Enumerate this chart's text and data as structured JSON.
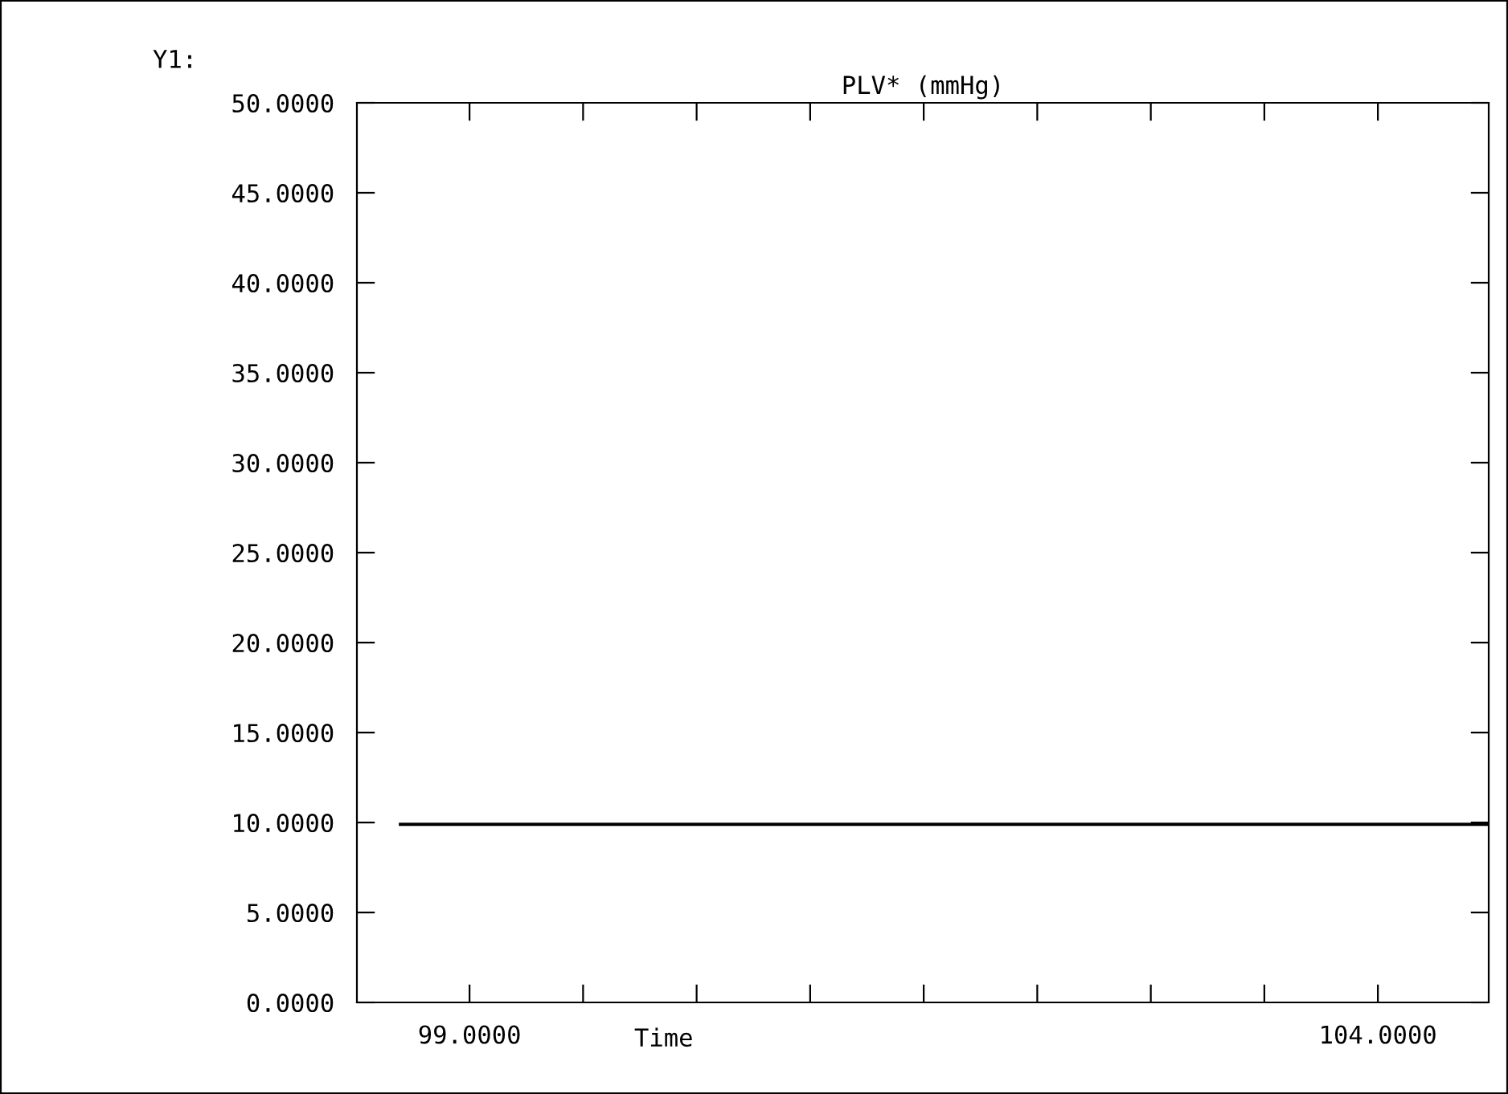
{
  "chart_data": {
    "type": "line",
    "title": "PLV* (mmHg)",
    "xlabel": "Time",
    "ylabel": "Y1:",
    "x": [
      98.62,
      104.61
    ],
    "series": [
      {
        "color": "#000000",
        "values": [
          9.9,
          9.9
        ]
      }
    ],
    "xlim": [
      98.38,
      104.61
    ],
    "xticks": [
      {
        "value": 99,
        "label": "99.0000"
      },
      {
        "value": 99.625,
        "label": null
      },
      {
        "value": 100.25,
        "label": null
      },
      {
        "value": 100.875,
        "label": null
      },
      {
        "value": 101.5,
        "label": null
      },
      {
        "value": 102.125,
        "label": null
      },
      {
        "value": 102.75,
        "label": null
      },
      {
        "value": 103.375,
        "label": null
      },
      {
        "value": 104,
        "label": "104.0000"
      }
    ],
    "ylim": [
      0,
      50
    ],
    "yticks": [
      {
        "value": 0,
        "label": "0.0000"
      },
      {
        "value": 5,
        "label": "5.0000"
      },
      {
        "value": 10,
        "label": "10.0000"
      },
      {
        "value": 15,
        "label": "15.0000"
      },
      {
        "value": 20,
        "label": "20.0000"
      },
      {
        "value": 25,
        "label": "25.0000"
      },
      {
        "value": 30,
        "label": "30.0000"
      },
      {
        "value": 35,
        "label": "35.0000"
      },
      {
        "value": 40,
        "label": "40.0000"
      },
      {
        "value": 45,
        "label": "45.0000"
      },
      {
        "value": 50,
        "label": "50.0000"
      }
    ],
    "grid": false
  }
}
